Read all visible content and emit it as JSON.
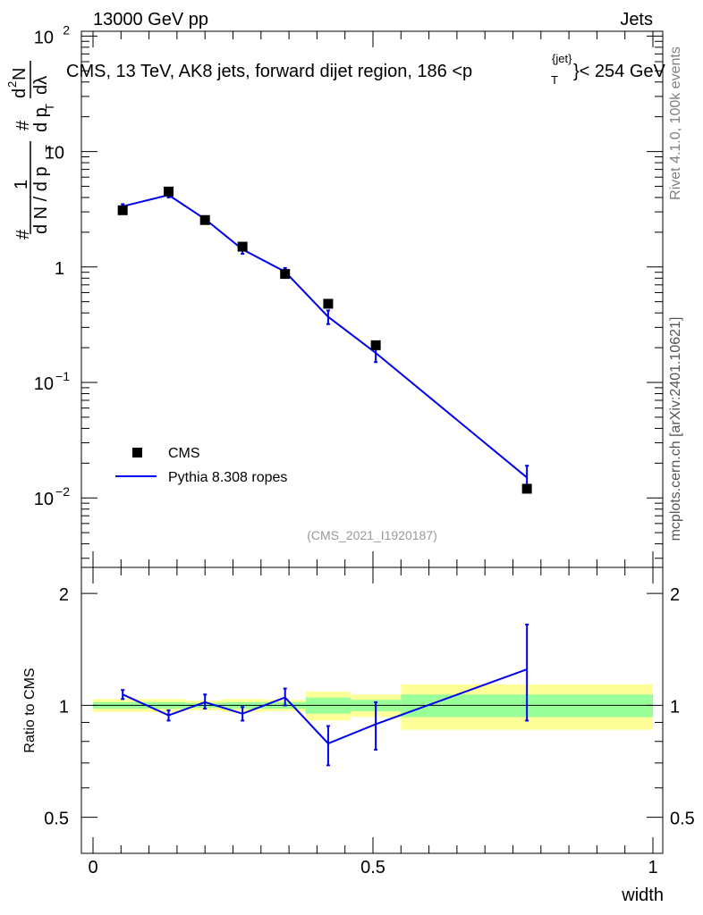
{
  "header": {
    "energy_label": "13000 GeV pp",
    "category_label": "Jets"
  },
  "side_text": {
    "rivet": "Rivet 4.1.0,  100k events",
    "mcplots": "mcplots.cern.ch [arXiv:2401.10621]"
  },
  "ratio_ylabel": "Ratio to CMS",
  "colors": {
    "data": "#000000",
    "mc": "#0000ee",
    "band_inner": "#99ff99",
    "band_outer": "#ffff99"
  },
  "chart_data": {
    "type": "line",
    "title": "CMS, 13 TeV, AK8 jets, forward dijet region, 186 <p_T^{jet}< 254 GeV",
    "title_parts": {
      "prefix": "CMS, 13 TeV, AK8 jets, forward dijet region, 186 <p",
      "sup": "{jet}",
      "sub": "T",
      "suffix": "}< 254 GeV"
    },
    "xlabel": "width",
    "ylabel_parts": [
      "#",
      "1",
      "d N / d p",
      "T",
      "#",
      "d p",
      "T",
      "d",
      "2",
      "N",
      "dλ"
    ],
    "watermark": "(CMS_2021_I1920187)",
    "xlim": [
      0,
      1
    ],
    "ylim": [
      0.0025,
      110
    ],
    "yscale": "log",
    "x_ticks": [
      {
        "v": 0,
        "label": "0"
      },
      {
        "v": 0.5,
        "label": "0.5"
      },
      {
        "v": 1,
        "label": "1"
      }
    ],
    "y_ticks": [
      {
        "v": 0.01,
        "base": "10",
        "exp": "−2"
      },
      {
        "v": 0.1,
        "base": "10",
        "exp": "−1"
      },
      {
        "v": 1,
        "base": "1",
        "exp": ""
      },
      {
        "v": 10,
        "base": "10",
        "exp": ""
      },
      {
        "v": 100,
        "base": "10",
        "exp": "2"
      }
    ],
    "legend": {
      "data_label": "CMS",
      "mc_label": "Pythia 8.308 ropes",
      "position": "lower-left"
    },
    "series": [
      {
        "name": "CMS",
        "kind": "markers",
        "x": [
          0.053,
          0.135,
          0.2,
          0.267,
          0.343,
          0.42,
          0.505,
          0.775
        ],
        "y": [
          3.1,
          4.5,
          2.55,
          1.5,
          0.87,
          0.48,
          0.21,
          0.012
        ]
      },
      {
        "name": "Pythia 8.308 ropes",
        "kind": "line",
        "x": [
          0.053,
          0.135,
          0.2,
          0.267,
          0.343,
          0.42,
          0.505,
          0.775
        ],
        "y": [
          3.35,
          4.2,
          2.6,
          1.42,
          0.91,
          0.37,
          0.18,
          0.015
        ],
        "err_lo": [
          3.2,
          4.0,
          2.45,
          1.3,
          0.84,
          0.32,
          0.15,
          0.012
        ],
        "err_hi": [
          3.5,
          4.4,
          2.75,
          1.55,
          0.98,
          0.42,
          0.21,
          0.019
        ]
      }
    ],
    "ratio": {
      "ylim": [
        0.4,
        2.35
      ],
      "yscale": "log",
      "y_ticks": [
        {
          "v": 0.5,
          "label": "0.5"
        },
        {
          "v": 1,
          "label": "1"
        },
        {
          "v": 2,
          "label": "2"
        }
      ],
      "bands": [
        {
          "x0": 0.0,
          "x1": 0.165,
          "inner_lo": 0.98,
          "inner_hi": 1.02,
          "outer_lo": 0.96,
          "outer_hi": 1.04
        },
        {
          "x0": 0.165,
          "x1": 0.23,
          "inner_lo": 0.985,
          "inner_hi": 1.015,
          "outer_lo": 0.97,
          "outer_hi": 1.03
        },
        {
          "x0": 0.23,
          "x1": 0.305,
          "inner_lo": 0.98,
          "inner_hi": 1.02,
          "outer_lo": 0.96,
          "outer_hi": 1.04
        },
        {
          "x0": 0.305,
          "x1": 0.38,
          "inner_lo": 0.98,
          "inner_hi": 1.02,
          "outer_lo": 0.965,
          "outer_hi": 1.035
        },
        {
          "x0": 0.38,
          "x1": 0.46,
          "inner_lo": 0.95,
          "inner_hi": 1.05,
          "outer_lo": 0.91,
          "outer_hi": 1.09
        },
        {
          "x0": 0.46,
          "x1": 0.55,
          "inner_lo": 0.965,
          "inner_hi": 1.035,
          "outer_lo": 0.93,
          "outer_hi": 1.07
        },
        {
          "x0": 0.55,
          "x1": 1.0,
          "inner_lo": 0.93,
          "inner_hi": 1.07,
          "outer_lo": 0.86,
          "outer_hi": 1.14
        }
      ],
      "mc": {
        "x": [
          0.053,
          0.135,
          0.2,
          0.267,
          0.343,
          0.42,
          0.505,
          0.775
        ],
        "y": [
          1.07,
          0.94,
          1.02,
          0.95,
          1.05,
          0.79,
          0.89,
          1.25
        ],
        "err_lo": [
          1.04,
          0.91,
          0.98,
          0.91,
          1.0,
          0.69,
          0.76,
          0.91
        ],
        "err_hi": [
          1.1,
          0.97,
          1.07,
          0.99,
          1.11,
          0.88,
          1.02,
          1.65
        ]
      }
    }
  }
}
